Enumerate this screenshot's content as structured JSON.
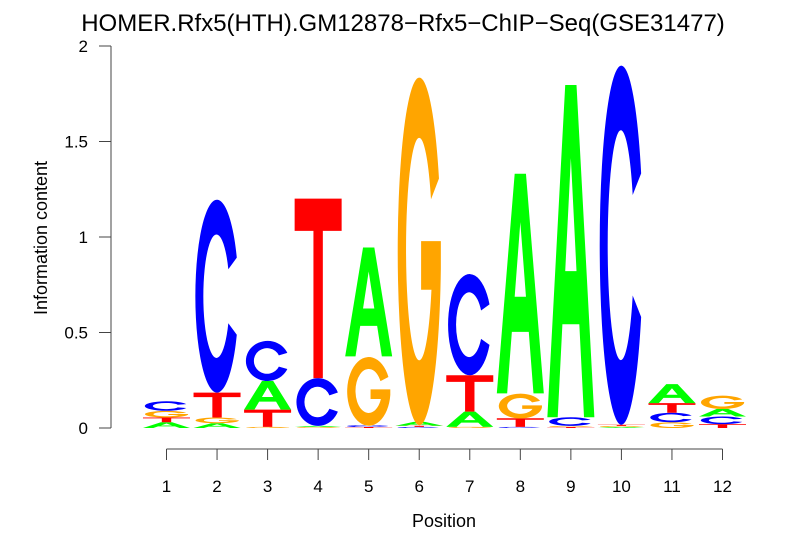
{
  "chart_data": {
    "type": "sequence-logo",
    "title": "HOMER.Rfx5(HTH).GM12878−Rfx5−ChIP−Seq(GSE31477)",
    "xlabel": "Position",
    "ylabel": "Information content",
    "ylim": [
      0,
      2
    ],
    "yticks": [
      "0",
      "0.5",
      "1",
      "1.5",
      "2"
    ],
    "ytick_values": [
      0,
      0.5,
      1,
      1.5,
      2
    ],
    "categories": [
      "1",
      "2",
      "3",
      "4",
      "5",
      "6",
      "7",
      "8",
      "9",
      "10",
      "11",
      "12"
    ],
    "colors": {
      "A": "#00ff00",
      "C": "#0000ff",
      "G": "#ffa500",
      "T": "#ff0000"
    },
    "stacks": [
      [
        {
          "l": "A",
          "h": 0.03
        },
        {
          "l": "T",
          "h": 0.025
        },
        {
          "l": "G",
          "h": 0.035
        },
        {
          "l": "C",
          "h": 0.05
        }
      ],
      [
        {
          "l": "A",
          "h": 0.025
        },
        {
          "l": "G",
          "h": 0.03
        },
        {
          "l": "T",
          "h": 0.13
        },
        {
          "l": "C",
          "h": 1.01
        }
      ],
      [
        {
          "l": "G",
          "h": 0.006
        },
        {
          "l": "T",
          "h": 0.09
        },
        {
          "l": "A",
          "h": 0.15
        },
        {
          "l": "C",
          "h": 0.21
        }
      ],
      [
        {
          "l": "G",
          "h": 0.005
        },
        {
          "l": "A",
          "h": 0.006
        },
        {
          "l": "C",
          "h": 0.25
        },
        {
          "l": "T",
          "h": 0.94
        }
      ],
      [
        {
          "l": "T",
          "h": 0.005
        },
        {
          "l": "C",
          "h": 0.01
        },
        {
          "l": "G",
          "h": 0.36
        },
        {
          "l": "A",
          "h": 0.57
        }
      ],
      [
        {
          "l": "C",
          "h": 0.006
        },
        {
          "l": "T",
          "h": 0.006
        },
        {
          "l": "A",
          "h": 0.02
        },
        {
          "l": "G",
          "h": 1.82
        }
      ],
      [
        {
          "l": "G",
          "h": 0.006
        },
        {
          "l": "A",
          "h": 0.08
        },
        {
          "l": "T",
          "h": 0.19
        },
        {
          "l": "C",
          "h": 0.53
        }
      ],
      [
        {
          "l": "C",
          "h": 0.006
        },
        {
          "l": "T",
          "h": 0.045
        },
        {
          "l": "G",
          "h": 0.13
        },
        {
          "l": "A",
          "h": 1.15
        }
      ],
      [
        {
          "l": "T",
          "h": 0.005
        },
        {
          "l": "G",
          "h": 0.006
        },
        {
          "l": "C",
          "h": 0.045
        },
        {
          "l": "A",
          "h": 1.74
        }
      ],
      [
        {
          "l": "A",
          "h": 0.005
        },
        {
          "l": "G",
          "h": 0.006
        },
        {
          "l": "T",
          "h": 0.006
        },
        {
          "l": "C",
          "h": 1.88
        }
      ],
      [
        {
          "l": "G",
          "h": 0.03
        },
        {
          "l": "C",
          "h": 0.05
        },
        {
          "l": "T",
          "h": 0.05
        },
        {
          "l": "A",
          "h": 0.1
        }
      ],
      [
        {
          "l": "T",
          "h": 0.02
        },
        {
          "l": "C",
          "h": 0.04
        },
        {
          "l": "A",
          "h": 0.04
        },
        {
          "l": "G",
          "h": 0.07
        }
      ]
    ]
  }
}
